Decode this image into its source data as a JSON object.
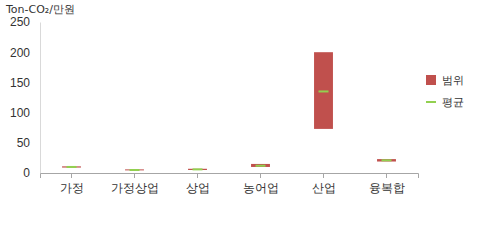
{
  "chart_data": {
    "type": "range",
    "y_label": "Ton-CO₂/만원",
    "categories": [
      "가정",
      "가정상업",
      "상업",
      "농어업",
      "산업",
      "융복합"
    ],
    "series": [
      {
        "name": "범위",
        "type": "bar",
        "color": "#c0504d",
        "low": [
          9,
          5,
          5,
          10,
          73,
          19
        ],
        "high": [
          11,
          6,
          7,
          15,
          200,
          23
        ]
      },
      {
        "name": "평균",
        "type": "marker",
        "color": "#92d050",
        "values": [
          10,
          5,
          6,
          12,
          135,
          21
        ]
      }
    ],
    "ylim": [
      0,
      250
    ],
    "yticks": [
      0,
      50,
      100,
      150,
      200,
      250
    ],
    "grid": false,
    "legend": "right"
  }
}
